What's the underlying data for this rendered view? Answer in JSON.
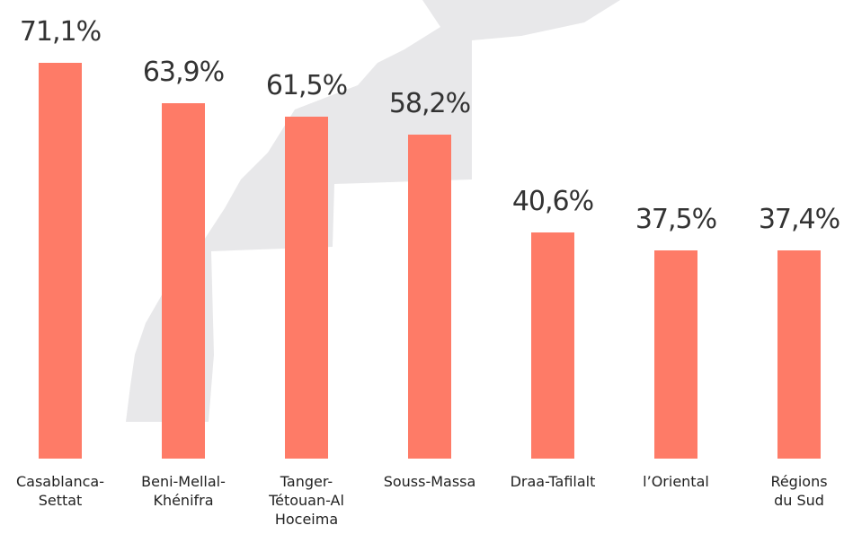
{
  "chart_data": {
    "type": "bar",
    "categories": [
      "Casablanca-\nSettat",
      "Beni-Mellal-\nKhénifra",
      "Tanger-\nTétouan-Al\nHoceima",
      "Souss-Massa",
      "Draa-Tafilalt",
      "l’Oriental",
      "Régions\ndu Sud"
    ],
    "values": [
      71.1,
      63.9,
      61.5,
      58.2,
      40.6,
      37.5,
      37.4
    ],
    "value_labels": [
      "71,1%",
      "63,9%",
      "61,5%",
      "58,2%",
      "40,6%",
      "37,5%",
      "37,4%"
    ],
    "color": "#fe7b67"
  }
}
